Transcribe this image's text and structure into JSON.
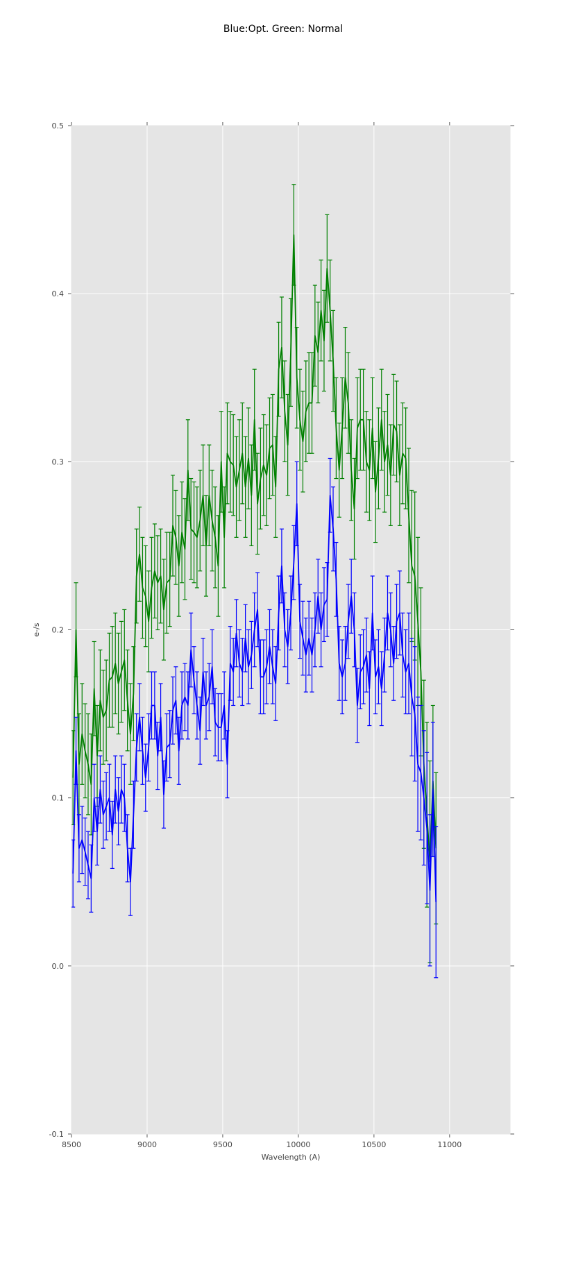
{
  "chart_data": {
    "type": "line",
    "title": "Blue:Opt. Green: Normal",
    "xlabel": "Wavelength (A)",
    "ylabel": "e-/s",
    "xlim": [
      8500,
      11400
    ],
    "ylim": [
      -0.1,
      0.5
    ],
    "xticks": [
      8500,
      9000,
      9500,
      10000,
      10500,
      11000
    ],
    "yticks": [
      -0.1,
      0.0,
      0.1,
      0.2,
      0.3,
      0.4,
      0.5
    ],
    "grid": true,
    "background": "#e5e5e5",
    "error_bars": true,
    "x_start": 8510,
    "x_step": 20,
    "series": [
      {
        "color": "#008000",
        "values": [
          0.112,
          0.2,
          0.12,
          0.138,
          0.128,
          0.12,
          0.108,
          0.165,
          0.125,
          0.158,
          0.148,
          0.152,
          0.17,
          0.172,
          0.18,
          0.168,
          0.175,
          0.182,
          0.158,
          0.138,
          0.162,
          0.232,
          0.245,
          0.225,
          0.22,
          0.205,
          0.225,
          0.235,
          0.228,
          0.232,
          0.212,
          0.228,
          0.23,
          0.262,
          0.255,
          0.238,
          0.258,
          0.248,
          0.295,
          0.26,
          0.258,
          0.255,
          0.265,
          0.28,
          0.25,
          0.28,
          0.265,
          0.255,
          0.238,
          0.3,
          0.255,
          0.305,
          0.3,
          0.298,
          0.285,
          0.295,
          0.305,
          0.285,
          0.302,
          0.28,
          0.325,
          0.275,
          0.29,
          0.298,
          0.292,
          0.308,
          0.31,
          0.285,
          0.355,
          0.368,
          0.33,
          0.31,
          0.365,
          0.435,
          0.35,
          0.325,
          0.312,
          0.33,
          0.335,
          0.335,
          0.375,
          0.365,
          0.39,
          0.372,
          0.415,
          0.39,
          0.36,
          0.32,
          0.295,
          0.32,
          0.35,
          0.335,
          0.295,
          0.272,
          0.32,
          0.325,
          0.325,
          0.3,
          0.295,
          0.32,
          0.282,
          0.302,
          0.325,
          0.3,
          0.31,
          0.292,
          0.322,
          0.318,
          0.292,
          0.305,
          0.302,
          0.268,
          0.238,
          0.232,
          0.205,
          0.175,
          0.12,
          0.09,
          0.062,
          0.11,
          0.07
        ],
        "errors": [
          0.028,
          0.028,
          0.03,
          0.03,
          0.028,
          0.03,
          0.03,
          0.028,
          0.03,
          0.03,
          0.028,
          0.03,
          0.028,
          0.03,
          0.03,
          0.03,
          0.03,
          0.03,
          0.03,
          0.03,
          0.028,
          0.028,
          0.028,
          0.03,
          0.03,
          0.03,
          0.03,
          0.028,
          0.028,
          0.028,
          0.03,
          0.03,
          0.028,
          0.03,
          0.028,
          0.03,
          0.03,
          0.03,
          0.03,
          0.03,
          0.03,
          0.03,
          0.03,
          0.03,
          0.03,
          0.03,
          0.03,
          0.03,
          0.03,
          0.03,
          0.03,
          0.03,
          0.03,
          0.03,
          0.03,
          0.03,
          0.03,
          0.03,
          0.03,
          0.03,
          0.03,
          0.03,
          0.03,
          0.03,
          0.03,
          0.03,
          0.03,
          0.03,
          0.028,
          0.03,
          0.03,
          0.03,
          0.032,
          0.03,
          0.03,
          0.03,
          0.03,
          0.03,
          0.03,
          0.03,
          0.03,
          0.03,
          0.03,
          0.03,
          0.032,
          0.03,
          0.03,
          0.03,
          0.028,
          0.03,
          0.03,
          0.03,
          0.03,
          0.03,
          0.03,
          0.03,
          0.03,
          0.03,
          0.03,
          0.03,
          0.03,
          0.03,
          0.03,
          0.03,
          0.03,
          0.03,
          0.03,
          0.03,
          0.03,
          0.03,
          0.03,
          0.04,
          0.045,
          0.05,
          0.05,
          0.05,
          0.05,
          0.055,
          0.06,
          0.045,
          0.045
        ]
      },
      {
        "color": "#0000ff",
        "values": [
          0.055,
          0.128,
          0.07,
          0.075,
          0.068,
          0.06,
          0.052,
          0.1,
          0.08,
          0.105,
          0.09,
          0.095,
          0.1,
          0.078,
          0.105,
          0.092,
          0.105,
          0.1,
          0.07,
          0.05,
          0.09,
          0.13,
          0.148,
          0.128,
          0.112,
          0.13,
          0.155,
          0.155,
          0.125,
          0.148,
          0.102,
          0.13,
          0.132,
          0.152,
          0.158,
          0.128,
          0.155,
          0.16,
          0.155,
          0.188,
          0.17,
          0.155,
          0.14,
          0.175,
          0.155,
          0.16,
          0.178,
          0.145,
          0.142,
          0.142,
          0.155,
          0.12,
          0.18,
          0.175,
          0.198,
          0.18,
          0.175,
          0.195,
          0.178,
          0.185,
          0.2,
          0.212,
          0.172,
          0.172,
          0.178,
          0.19,
          0.178,
          0.168,
          0.21,
          0.238,
          0.2,
          0.19,
          0.21,
          0.24,
          0.275,
          0.205,
          0.195,
          0.185,
          0.195,
          0.185,
          0.2,
          0.22,
          0.2,
          0.215,
          0.218,
          0.28,
          0.26,
          0.23,
          0.18,
          0.172,
          0.18,
          0.205,
          0.22,
          0.2,
          0.155,
          0.175,
          0.178,
          0.185,
          0.165,
          0.21,
          0.172,
          0.178,
          0.165,
          0.185,
          0.21,
          0.2,
          0.18,
          0.205,
          0.21,
          0.185,
          0.175,
          0.18,
          0.16,
          0.15,
          0.12,
          0.115,
          0.1,
          0.082,
          0.045,
          0.105,
          0.038
        ],
        "errors": [
          0.02,
          0.02,
          0.02,
          0.02,
          0.02,
          0.02,
          0.02,
          0.02,
          0.02,
          0.02,
          0.02,
          0.02,
          0.02,
          0.02,
          0.02,
          0.02,
          0.02,
          0.02,
          0.02,
          0.02,
          0.02,
          0.02,
          0.02,
          0.02,
          0.02,
          0.02,
          0.02,
          0.02,
          0.02,
          0.02,
          0.02,
          0.02,
          0.02,
          0.02,
          0.02,
          0.02,
          0.02,
          0.02,
          0.02,
          0.022,
          0.02,
          0.02,
          0.02,
          0.02,
          0.02,
          0.02,
          0.022,
          0.02,
          0.02,
          0.02,
          0.02,
          0.02,
          0.022,
          0.02,
          0.02,
          0.02,
          0.02,
          0.02,
          0.022,
          0.02,
          0.022,
          0.022,
          0.022,
          0.022,
          0.022,
          0.022,
          0.022,
          0.022,
          0.022,
          0.022,
          0.022,
          0.022,
          0.022,
          0.022,
          0.025,
          0.022,
          0.022,
          0.022,
          0.022,
          0.022,
          0.022,
          0.022,
          0.022,
          0.022,
          0.022,
          0.022,
          0.025,
          0.022,
          0.022,
          0.022,
          0.022,
          0.022,
          0.022,
          0.022,
          0.022,
          0.022,
          0.022,
          0.022,
          0.022,
          0.022,
          0.022,
          0.022,
          0.022,
          0.022,
          0.022,
          0.022,
          0.022,
          0.022,
          0.025,
          0.025,
          0.025,
          0.03,
          0.035,
          0.04,
          0.04,
          0.04,
          0.04,
          0.045,
          0.045,
          0.04,
          0.045
        ]
      }
    ]
  }
}
